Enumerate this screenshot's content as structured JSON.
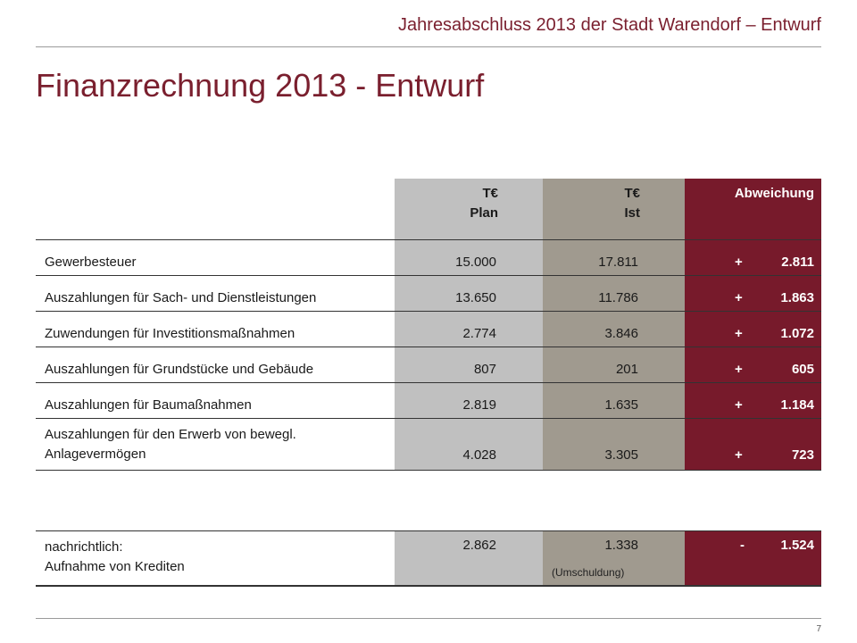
{
  "header": {
    "title": "Jahresabschluss 2013 der Stadt Warendorf – Entwurf"
  },
  "page_title": "Finanzrechnung 2013 - Entwurf",
  "table": {
    "columns": {
      "plan": {
        "line1": "T€",
        "line2": "Plan"
      },
      "ist": {
        "line1": "T€",
        "line2": "Ist"
      },
      "deviation": {
        "line1": "Abweichung"
      }
    },
    "rows": [
      {
        "label": "Gewerbesteuer",
        "plan": "15.000",
        "ist": "17.811",
        "sign": "+",
        "deviation": "2.811"
      },
      {
        "label": "Auszahlungen für Sach- und Dienstleistungen",
        "plan": "13.650",
        "ist": "11.786",
        "sign": "+",
        "deviation": "1.863"
      },
      {
        "label": "Zuwendungen für Investitionsmaßnahmen",
        "plan": "2.774",
        "ist": "3.846",
        "sign": "+",
        "deviation": "1.072"
      },
      {
        "label": "Auszahlungen für Grundstücke und Gebäude",
        "plan": "807",
        "ist": "201",
        "sign": "+",
        "deviation": "605"
      },
      {
        "label": "Auszahlungen für Baumaßnahmen",
        "plan": "2.819",
        "ist": "1.635",
        "sign": "+",
        "deviation": "1.184"
      },
      {
        "label_line1": "Auszahlungen für den Erwerb von bewegl.",
        "label_line2": "Anlagevermögen",
        "plan": "4.028",
        "ist": "3.305",
        "sign": "+",
        "deviation": "723"
      }
    ],
    "note": {
      "label_line1": "nachrichtlich:",
      "label_line2": "Aufnahme von Krediten",
      "plan": "2.862",
      "ist": "1.338",
      "ist_note": "(Umschuldung)",
      "sign": "-",
      "deviation": "1.524"
    }
  },
  "footer": {
    "page_number": "7"
  },
  "colors": {
    "accent": "#7a1f2e",
    "plan_column": "#c0c0c0",
    "ist_column": "#a09a8f",
    "deviation_column": "#771a2b"
  }
}
